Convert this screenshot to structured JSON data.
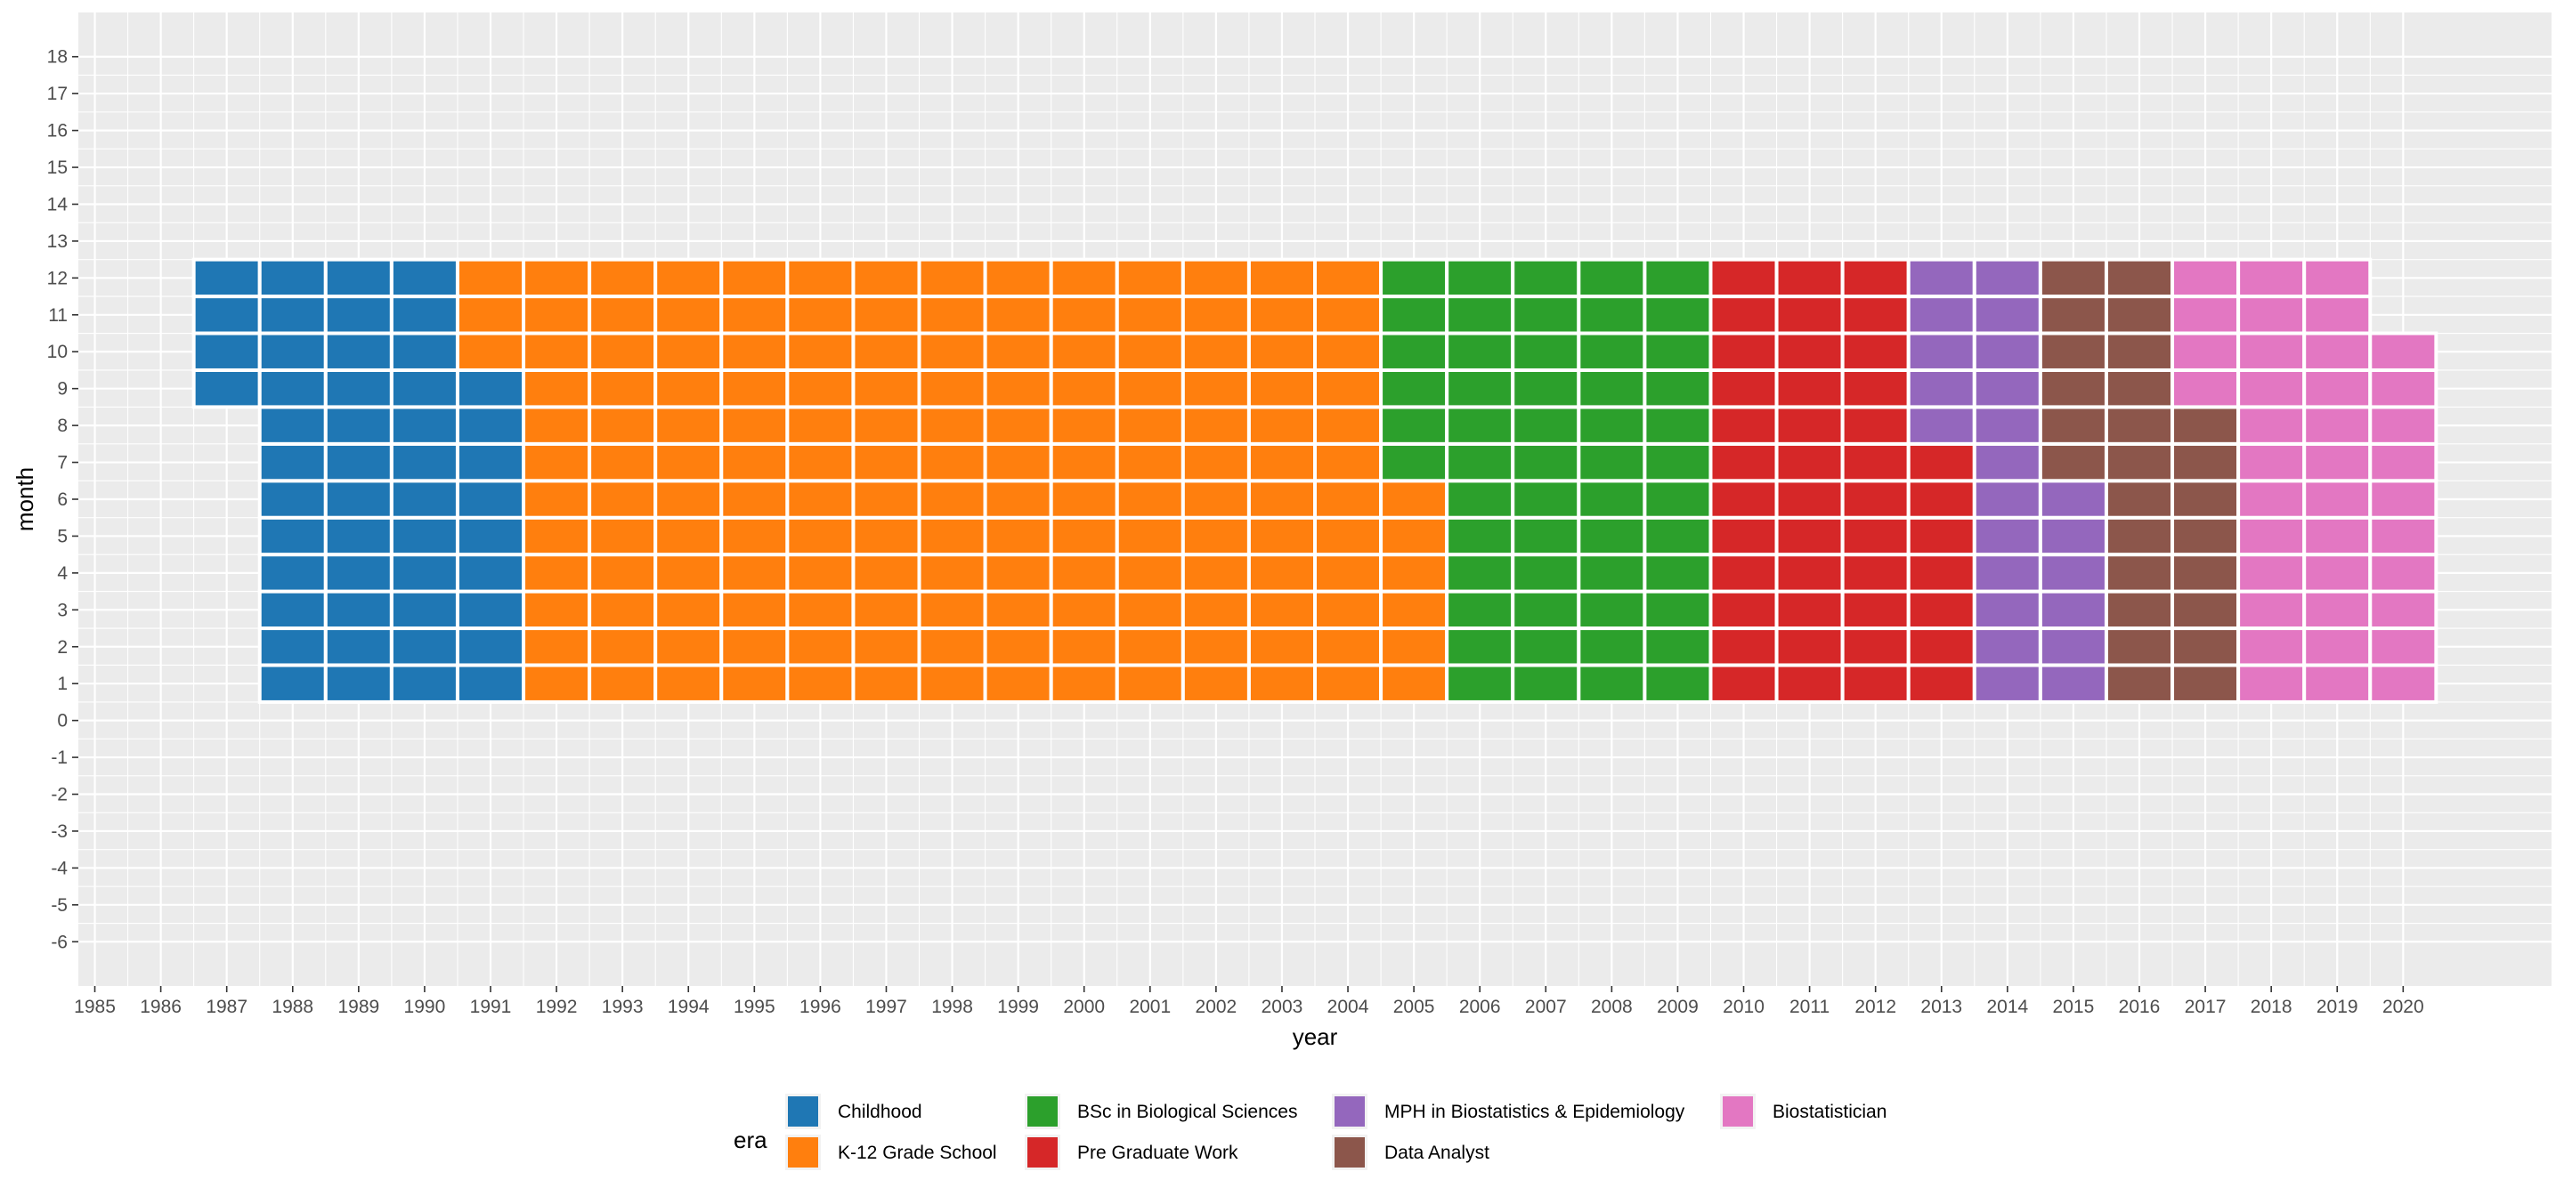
{
  "chart_data": {
    "type": "heatmap",
    "title": "",
    "xlabel": "year",
    "ylabel": "month",
    "xlim": [
      1984.75,
      2022.25
    ],
    "ylim": [
      -7.2,
      19.2
    ],
    "x_ticks": [
      1985,
      1986,
      1987,
      1988,
      1989,
      1990,
      1991,
      1992,
      1993,
      1994,
      1995,
      1996,
      1997,
      1998,
      1999,
      2000,
      2001,
      2002,
      2003,
      2004,
      2005,
      2006,
      2007,
      2008,
      2009,
      2010,
      2011,
      2012,
      2013,
      2014,
      2015,
      2016,
      2017,
      2018,
      2019,
      2020
    ],
    "y_ticks": [
      -6,
      -5,
      -4,
      -3,
      -2,
      -1,
      0,
      1,
      2,
      3,
      4,
      5,
      6,
      7,
      8,
      9,
      10,
      11,
      12,
      13,
      14,
      15,
      16,
      17,
      18
    ],
    "grid": true,
    "legend": {
      "title": "era",
      "position": "bottom",
      "items": [
        {
          "label": "Childhood",
          "color": "#1f77b4"
        },
        {
          "label": "K-12 Grade School",
          "color": "#ff7f0e"
        },
        {
          "label": "BSc in Biological Sciences",
          "color": "#2ca02c"
        },
        {
          "label": "Pre Graduate Work",
          "color": "#d62728"
        },
        {
          "label": "MPH in Biostatistics & Epidemiology",
          "color": "#9467bd"
        },
        {
          "label": "Data Analyst",
          "color": "#8c564b"
        },
        {
          "label": "Biostatistician",
          "color": "#e377c2"
        }
      ]
    },
    "eras": [
      {
        "name": "Childhood",
        "color": "#1f77b4",
        "start": [
          1987,
          9
        ],
        "end": [
          1991,
          9
        ]
      },
      {
        "name": "K-12 Grade School",
        "color": "#ff7f0e",
        "start": [
          1991,
          10
        ],
        "end": [
          2005,
          6
        ]
      },
      {
        "name": "BSc in Biological Sciences",
        "color": "#2ca02c",
        "start": [
          2005,
          7
        ],
        "end": [
          2010,
          12
        ]
      },
      {
        "name": "Pre Graduate Work",
        "color": "#d62728",
        "start": [
          2010,
          1
        ],
        "end": [
          2013,
          7
        ]
      },
      {
        "name": "MPH in Biostatistics & Epidemiology",
        "color": "#9467bd",
        "start": [
          2013,
          8
        ],
        "end": [
          2015,
          6
        ]
      },
      {
        "name": "Data Analyst",
        "color": "#8c564b",
        "start": [
          2015,
          7
        ],
        "end": [
          2017,
          8
        ]
      },
      {
        "name": "Biostatistician",
        "color": "#e377c2",
        "start": [
          2017,
          9
        ],
        "end": [
          2020,
          10
        ]
      }
    ]
  }
}
